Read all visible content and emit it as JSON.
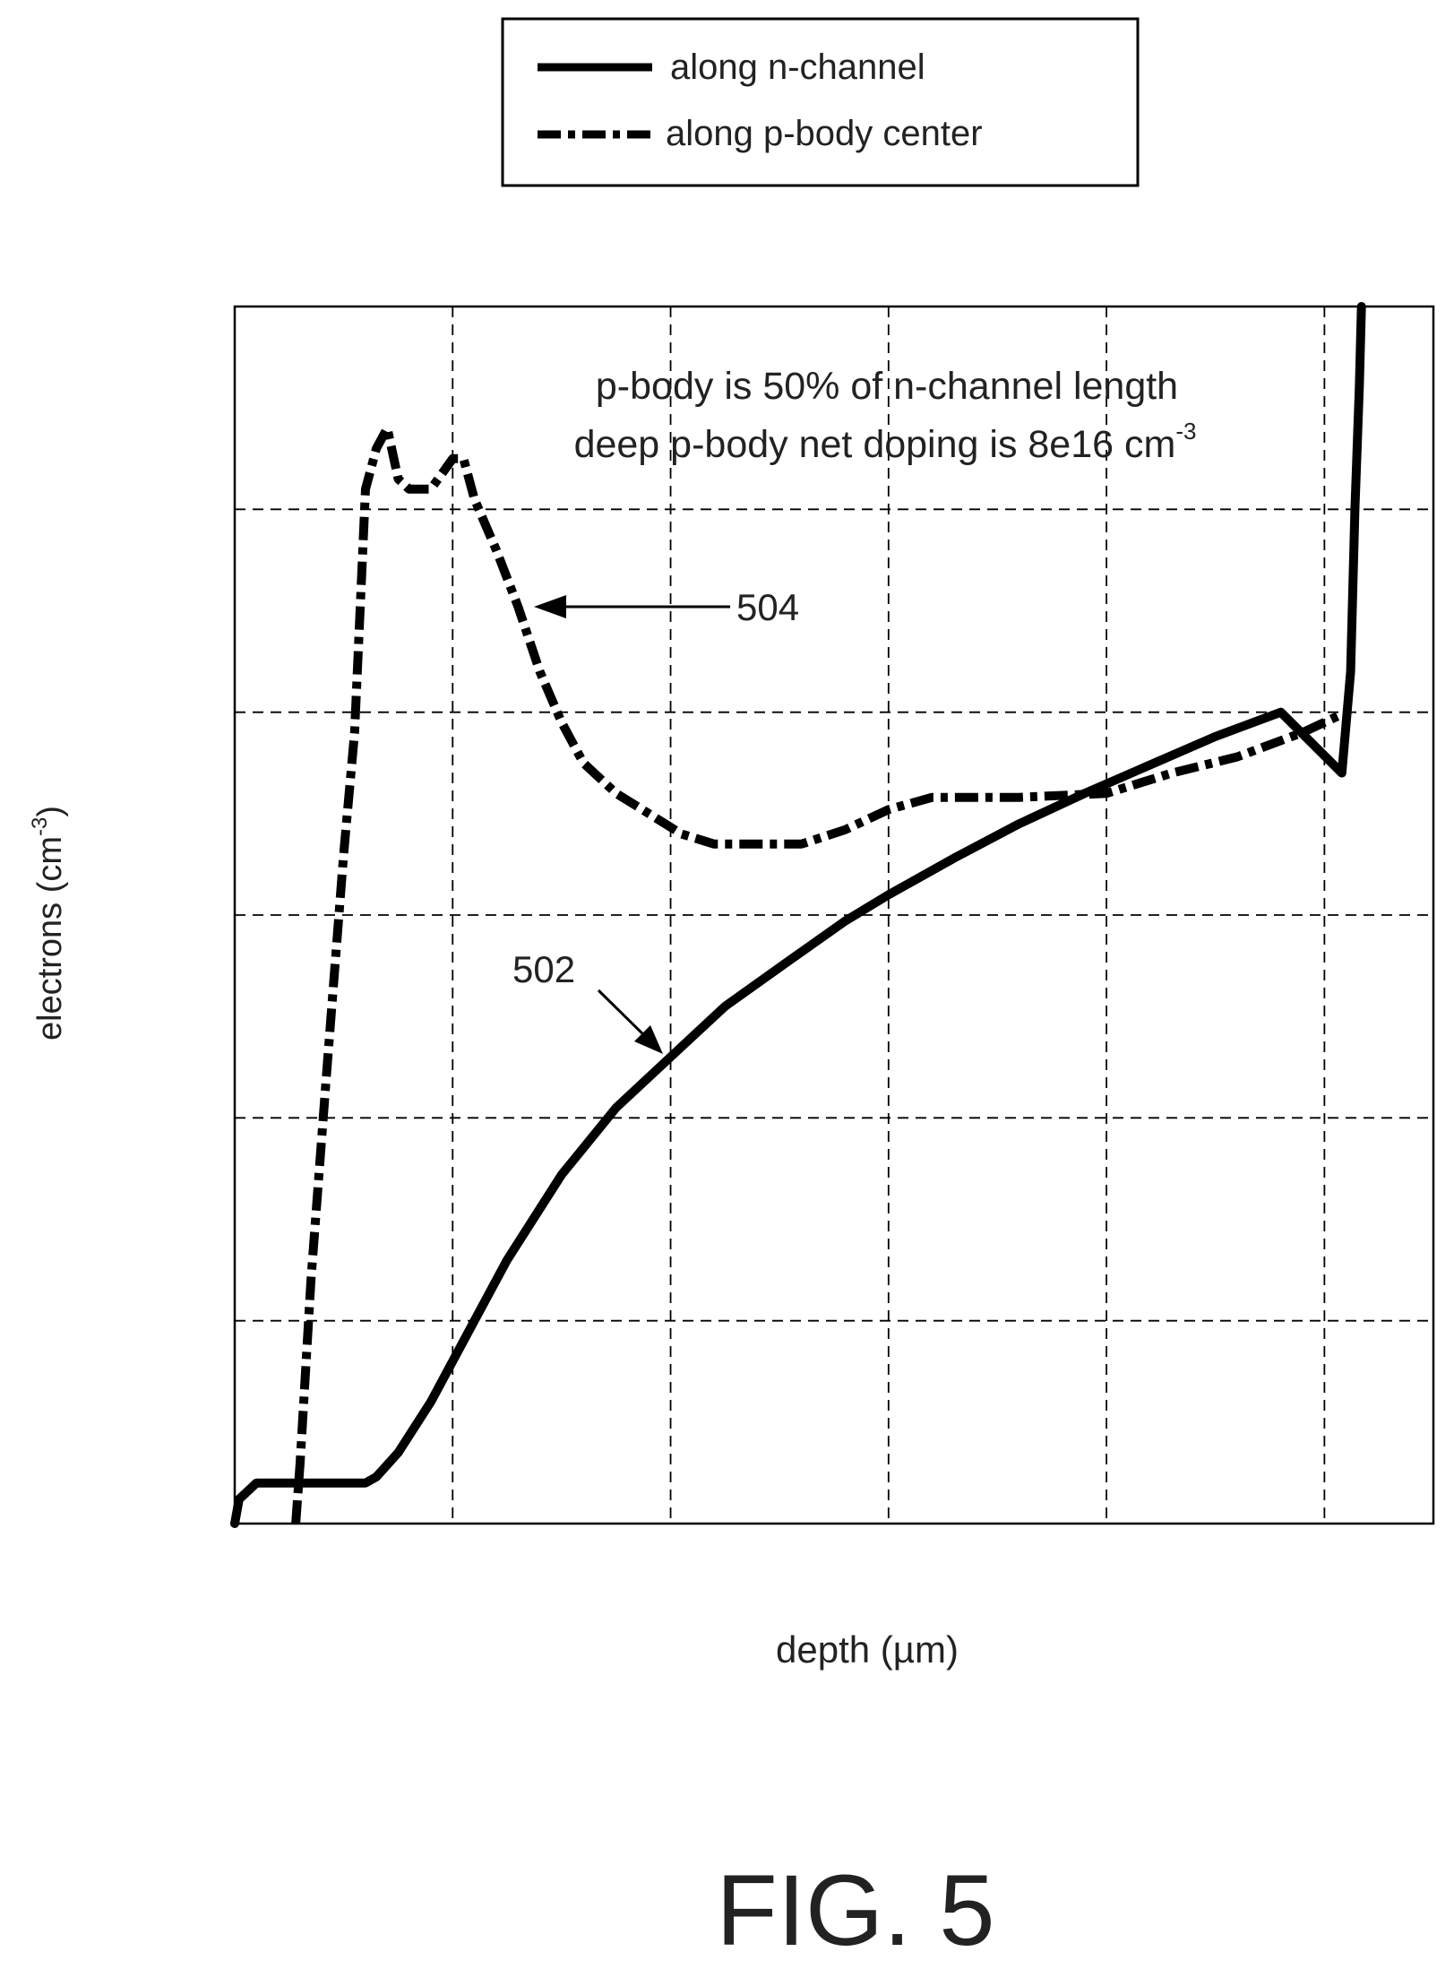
{
  "figure_label": "FIG. 5",
  "chart_data": {
    "type": "line",
    "title": "",
    "xlabel": "depth (µm)",
    "ylabel_main": "electrons (cm",
    "ylabel_sup": "-3",
    "ylabel_close": ")",
    "xlim": [
      0,
      5.5
    ],
    "ylim": [
      0,
      6
    ],
    "x_gridlines": [
      1,
      2,
      3,
      4,
      5
    ],
    "y_gridlines": [
      1,
      2,
      3,
      4,
      5
    ],
    "grid": true,
    "legend_position": "top-center, above plot",
    "tick_labels": "none shown",
    "annotations": {
      "line1": "p-body is 50% of n-channel length",
      "line2_main": "deep p-body net doping is 8e16 cm",
      "line2_sup": "-3"
    },
    "callouts": [
      {
        "text": "504",
        "series": "along p-body center",
        "x": 1.38,
        "y": 4.52
      },
      {
        "text": "502",
        "series": "along n-channel",
        "x": 2.0,
        "y": 2.3
      }
    ],
    "series": [
      {
        "name": "along n-channel",
        "style": "solid",
        "color": "#000000",
        "x": [
          0.0,
          0.02,
          0.1,
          0.3,
          0.6,
          0.65,
          0.75,
          0.9,
          1.05,
          1.25,
          1.5,
          1.75,
          2.0,
          2.25,
          2.55,
          2.8,
          3.0,
          3.3,
          3.6,
          3.9,
          4.2,
          4.5,
          4.8,
          5.08,
          5.12,
          5.14,
          5.16,
          5.17
        ],
        "y": [
          0.0,
          0.12,
          0.2,
          0.2,
          0.2,
          0.23,
          0.35,
          0.6,
          0.9,
          1.3,
          1.72,
          2.05,
          2.3,
          2.55,
          2.78,
          2.97,
          3.1,
          3.28,
          3.45,
          3.6,
          3.74,
          3.88,
          4.0,
          3.7,
          4.2,
          5.0,
          5.6,
          6.0
        ]
      },
      {
        "name": "along p-body center",
        "style": "dash-dot",
        "color": "#000000",
        "x": [
          0.28,
          0.3,
          0.35,
          0.42,
          0.5,
          0.55,
          0.6,
          0.65,
          0.7,
          0.75,
          0.8,
          0.9,
          1.0,
          1.05,
          1.1,
          1.2,
          1.3,
          1.4,
          1.5,
          1.6,
          1.75,
          1.9,
          2.05,
          2.2,
          2.4,
          2.6,
          2.8,
          3.0,
          3.2,
          3.6,
          4.0,
          4.3,
          4.6,
          4.9,
          5.06
        ],
        "y": [
          0.0,
          0.3,
          1.2,
          2.2,
          3.3,
          3.9,
          5.1,
          5.3,
          5.4,
          5.15,
          5.1,
          5.1,
          5.25,
          5.25,
          5.05,
          4.8,
          4.52,
          4.2,
          3.95,
          3.75,
          3.6,
          3.5,
          3.4,
          3.35,
          3.35,
          3.35,
          3.42,
          3.52,
          3.58,
          3.58,
          3.6,
          3.7,
          3.78,
          3.9,
          3.98
        ]
      }
    ]
  }
}
